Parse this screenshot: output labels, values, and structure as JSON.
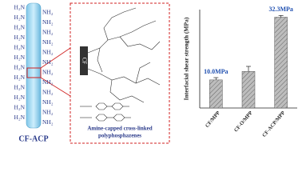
{
  "fiber": {
    "label": "CF-ACP",
    "left_groups": [
      "H₂N",
      "H₂N",
      "H₂N",
      "H₂N",
      "H₂N",
      "H₂N",
      "H₂N",
      "H₂N",
      "H₂N",
      "H₂N",
      "H₂N",
      "H₂N"
    ],
    "right_groups": [
      "NH₂",
      "NH₂",
      "NH₂",
      "NH₂",
      "NH₂",
      "NH₂",
      "NH₂",
      "NH₂",
      "NH₂",
      "NH₂",
      "NH₂",
      "NH₂"
    ]
  },
  "inset": {
    "fiber_label": "CF",
    "caption_line1": "Amine-capped  cross-linked",
    "caption_line2": "polyphosphazenes"
  },
  "chart_data": {
    "type": "bar",
    "ylabel": "Interfacial shear strength (MPa)",
    "categories": [
      "CF/MPP",
      "CF-O/MPP",
      "CF-ACP/MPP"
    ],
    "values": [
      10.0,
      13.0,
      32.3
    ],
    "errors": [
      0.8,
      1.8,
      0.6
    ],
    "value_labels": [
      "10.0MPa",
      null,
      "32.3MPa"
    ],
    "color": "#9a9a9a",
    "label_color": "#1f4fb0",
    "ylim": [
      0,
      35
    ]
  }
}
